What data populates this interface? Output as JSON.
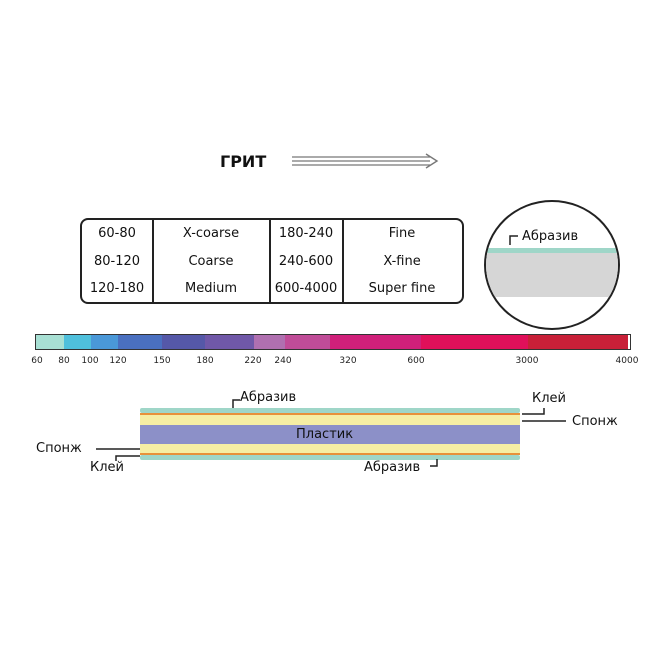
{
  "title": "ГРИТ",
  "table": {
    "rows": [
      [
        "60-80",
        "X-coarse",
        "180-240",
        "Fine"
      ],
      [
        "80-120",
        "Coarse",
        "240-600",
        "X-fine"
      ],
      [
        "120-180",
        "Medium",
        "600-4000",
        "Super fine"
      ]
    ]
  },
  "circle_label": "Абразив",
  "scale": {
    "ticks": [
      "60",
      "80",
      "100",
      "120",
      "150",
      "180",
      "220",
      "240",
      "320",
      "600",
      "3000",
      "4000"
    ],
    "colors": [
      "#a8e0d4",
      "#4fc0dc",
      "#4a98d8",
      "#4a70c0",
      "#5558a8",
      "#7058a8",
      "#b070b0",
      "#c04c98",
      "#d0207a",
      "#e0105a",
      "#c82038"
    ]
  },
  "layers": {
    "plastic": "Пластик",
    "abrasive_top": "Абразив",
    "abrasive_bottom": "Абразив",
    "glue_right": "Клей",
    "sponge_right": "Спонж",
    "sponge_left": "Спонж",
    "glue_left": "Клей"
  },
  "colors": {
    "abrasive": "#9fd6c8",
    "sponge": "#f6eea4",
    "glue": "#e8913a",
    "plastic": "#8c90c8",
    "circle_fill": "#d6d6d6"
  }
}
